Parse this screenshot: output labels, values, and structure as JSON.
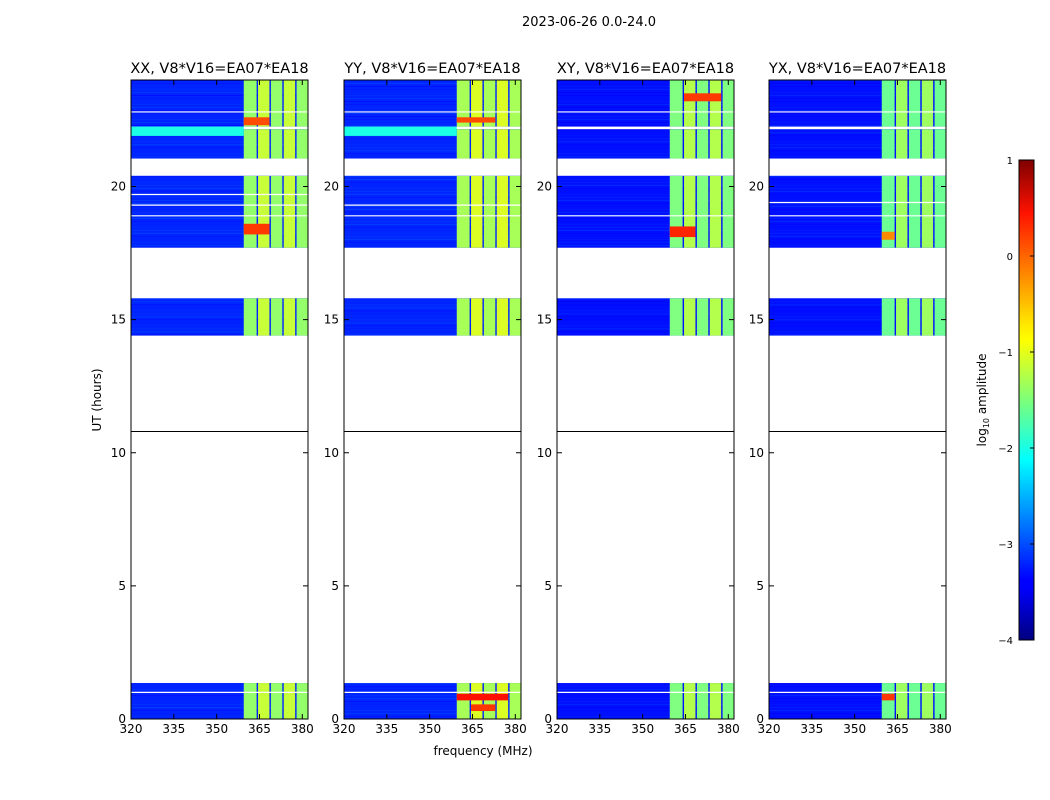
{
  "figure": {
    "suptitle": "2023-06-26 0.0-24.0",
    "ylabel": "UT (hours)",
    "xlabel": "frequency (MHz)",
    "colorbar": {
      "label_base": "log",
      "label_sub": "10",
      "label_rest": " amplitude",
      "range": [
        -4,
        1
      ],
      "ticks": [
        1,
        0,
        -1,
        -2,
        -3,
        -4
      ],
      "tick_labels": [
        "1",
        "0",
        "−1",
        "−2",
        "−3",
        "−4"
      ],
      "colormap": "jet"
    }
  },
  "chart_data": [
    {
      "type": "heatmap",
      "title": "XX, V8*V16=EA07*EA18",
      "polarization": "XX",
      "xlim": [
        320,
        382
      ],
      "ylim": [
        0,
        24
      ],
      "xticks": [
        320,
        335,
        350,
        365,
        380
      ],
      "xtick_labels": [
        "320",
        "335",
        "350",
        "365",
        "380"
      ],
      "yticks": [
        0,
        5,
        10,
        15,
        20
      ],
      "ytick_labels": [
        "0",
        "5",
        "10",
        "15",
        "20"
      ],
      "show_ylabel": true,
      "data_blocks_utc_hours": [
        [
          0.0,
          1.35
        ],
        [
          14.4,
          15.8
        ],
        [
          17.7,
          20.4
        ],
        [
          21.05,
          22.15
        ],
        [
          22.25,
          24.0
        ]
      ],
      "band_ranges_mhz": [
        [
          359.5,
          364
        ],
        [
          364.5,
          368.5
        ],
        [
          369,
          373
        ],
        [
          373.5,
          377.5
        ],
        [
          378,
          382
        ]
      ],
      "background_log10_amp": -3.2,
      "band_log10_amp": -1.3,
      "hot_band_segments": [
        [
          359.5,
          368.5,
          18.2,
          18.6,
          0.1
        ],
        [
          359.5,
          368.5,
          22.3,
          22.6,
          0.0
        ]
      ],
      "cyan_stripe_hours": [
        [
          21.9,
          22.25
        ]
      ],
      "rfi_lines_hours": [
        1.0,
        18.9,
        19.3,
        19.7,
        22.8
      ]
    },
    {
      "type": "heatmap",
      "title": "YY, V8*V16=EA07*EA18",
      "polarization": "YY",
      "xlim": [
        320,
        382
      ],
      "ylim": [
        0,
        24
      ],
      "xticks": [
        320,
        335,
        350,
        365,
        380
      ],
      "xtick_labels": [
        "320",
        "335",
        "350",
        "365",
        "380"
      ],
      "yticks": [
        0,
        5,
        10,
        15,
        20
      ],
      "ytick_labels": [
        "0",
        "5",
        "10",
        "15",
        "20"
      ],
      "show_ylabel": false,
      "data_blocks_utc_hours": [
        [
          0.0,
          1.35
        ],
        [
          14.4,
          15.8
        ],
        [
          17.7,
          20.4
        ],
        [
          21.05,
          22.15
        ],
        [
          22.25,
          24.0
        ]
      ],
      "band_ranges_mhz": [
        [
          359.5,
          364
        ],
        [
          364.5,
          368.5
        ],
        [
          369,
          373
        ],
        [
          373.5,
          377.5
        ],
        [
          378,
          382
        ]
      ],
      "background_log10_amp": -3.2,
      "band_log10_amp": -1.2,
      "hot_band_segments": [
        [
          359.5,
          377.5,
          0.7,
          0.95,
          0.3
        ],
        [
          364.5,
          373,
          0.3,
          0.55,
          0.1
        ],
        [
          359.5,
          373,
          22.4,
          22.6,
          0.0
        ]
      ],
      "cyan_stripe_hours": [
        [
          21.9,
          22.25
        ]
      ],
      "rfi_lines_hours": [
        1.0,
        18.9,
        19.3,
        22.8
      ]
    },
    {
      "type": "heatmap",
      "title": "XY, V8*V16=EA07*EA18",
      "polarization": "XY",
      "xlim": [
        320,
        382
      ],
      "ylim": [
        0,
        24
      ],
      "xticks": [
        320,
        335,
        350,
        365,
        380
      ],
      "xtick_labels": [
        "320",
        "335",
        "350",
        "365",
        "380"
      ],
      "yticks": [
        0,
        5,
        10,
        15,
        20
      ],
      "ytick_labels": [
        "0",
        "5",
        "10",
        "15",
        "20"
      ],
      "show_ylabel": false,
      "data_blocks_utc_hours": [
        [
          0.0,
          1.35
        ],
        [
          14.4,
          15.8
        ],
        [
          17.7,
          20.4
        ],
        [
          21.05,
          22.15
        ],
        [
          22.25,
          24.0
        ]
      ],
      "band_ranges_mhz": [
        [
          359.5,
          364
        ],
        [
          364.5,
          368.5
        ],
        [
          369,
          373
        ],
        [
          373.5,
          377.5
        ],
        [
          378,
          382
        ]
      ],
      "background_log10_amp": -3.3,
      "band_log10_amp": -1.4,
      "hot_band_segments": [
        [
          359.5,
          368.5,
          18.1,
          18.5,
          0.2
        ],
        [
          364.5,
          377.5,
          23.2,
          23.5,
          0.1
        ]
      ],
      "cyan_stripe_hours": [],
      "rfi_lines_hours": [
        1.0,
        18.9,
        22.8
      ]
    },
    {
      "type": "heatmap",
      "title": "YX, V8*V16=EA07*EA18",
      "polarization": "YX",
      "xlim": [
        320,
        382
      ],
      "ylim": [
        0,
        24
      ],
      "xticks": [
        320,
        335,
        350,
        365,
        380
      ],
      "xtick_labels": [
        "320",
        "335",
        "350",
        "365",
        "380"
      ],
      "yticks": [
        0,
        5,
        10,
        15,
        20
      ],
      "ytick_labels": [
        "0",
        "5",
        "10",
        "15",
        "20"
      ],
      "show_ylabel": false,
      "data_blocks_utc_hours": [
        [
          0.0,
          1.35
        ],
        [
          14.4,
          15.8
        ],
        [
          17.7,
          20.4
        ],
        [
          21.05,
          22.15
        ],
        [
          22.25,
          24.0
        ]
      ],
      "band_ranges_mhz": [
        [
          359.5,
          364
        ],
        [
          364.5,
          368.5
        ],
        [
          369,
          373
        ],
        [
          373.5,
          377.5
        ],
        [
          378,
          382
        ]
      ],
      "background_log10_amp": -3.3,
      "band_log10_amp": -1.5,
      "hot_band_segments": [
        [
          359.5,
          364,
          0.7,
          0.95,
          0.1
        ],
        [
          359.5,
          364,
          18.0,
          18.3,
          -0.3
        ]
      ],
      "cyan_stripe_hours": [],
      "rfi_lines_hours": [
        1.0,
        18.9,
        19.4,
        22.8
      ]
    }
  ]
}
